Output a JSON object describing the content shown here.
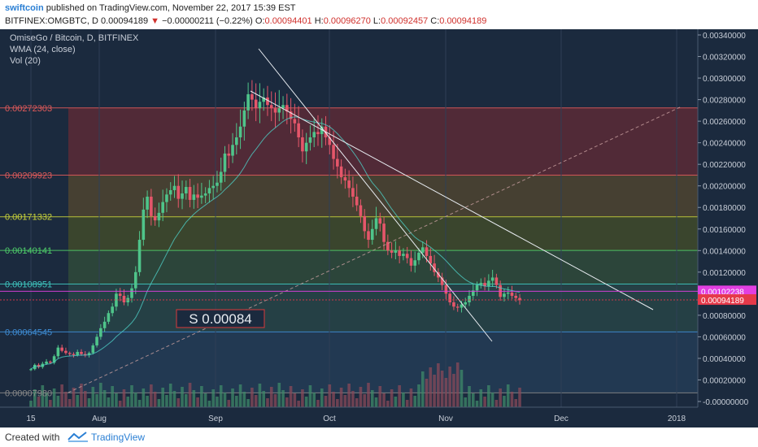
{
  "header": {
    "author": "swiftcoin",
    "published": "published on TradingView.com, November 22, 2017 15:39 EST",
    "ticker": "BITFINEX:OMGBTC, D",
    "last": "0.00094189",
    "change_arrow": "▼",
    "change": "−0.00000211 (−0.22%)",
    "ohlc": {
      "o_label": "O:",
      "o": "0.00094401",
      "h_label": "H:",
      "h": "0.00096270",
      "l_label": "L:",
      "l": "0.00092457",
      "c_label": "C:",
      "c": "0.00094189"
    }
  },
  "legend": {
    "symbol": "OmiseGo / Bitcoin, D, BITFINEX",
    "wma": "WMA (24, close)",
    "vol": "Vol (20)"
  },
  "footer": {
    "created_with": "Created with",
    "brand": "TradingView"
  },
  "chart_data": {
    "type": "candlestick",
    "title": "OmiseGo / Bitcoin, D, BITFINEX",
    "x_axis_labels": [
      "15",
      "Aug",
      "Sep",
      "Oct",
      "Nov",
      "Dec",
      "2018"
    ],
    "y_axis_labels": [
      "0.00340000",
      "0.00320000",
      "0.00300000",
      "0.00280000",
      "0.00260000",
      "0.00240000",
      "0.00220000",
      "0.00200000",
      "0.00180000",
      "0.00160000",
      "0.00140000",
      "0.00120000",
      "0.00100000",
      "0.00080000",
      "0.00060000",
      "0.00040000",
      "0.00020000",
      "-0.00000000"
    ],
    "ylim": [
      -0.0001,
      0.00345
    ],
    "fib_levels": [
      {
        "label": "0.00272303",
        "value": 0.00272303,
        "color": "#e05a5a"
      },
      {
        "label": "0.00209923",
        "value": 0.00209923,
        "color": "#e05a5a"
      },
      {
        "label": "0.00171332",
        "value": 0.00171332,
        "color": "#c8d23a"
      },
      {
        "label": "0.00140141",
        "value": 0.00140141,
        "color": "#4fd06a"
      },
      {
        "label": "0.00108951",
        "value": 0.00108951,
        "color": "#3fc7c0"
      },
      {
        "label": "0.00064545",
        "value": 0.00064545,
        "color": "#3f8fd8"
      },
      {
        "label": "0.00007980",
        "value": 7.98e-05,
        "color": "#888888"
      }
    ],
    "price_labels": [
      {
        "label": "0.00102238",
        "value": 0.00102238,
        "color": "#e23fe2"
      },
      {
        "label": "0.00094189",
        "value": 0.00094189,
        "color": "#e5394a"
      }
    ],
    "annotation": "S 0.00084",
    "closes": [
      0.0003,
      0.00034,
      0.00032,
      0.00035,
      0.00037,
      0.00036,
      0.00042,
      0.0005,
      0.00047,
      0.00045,
      0.00044,
      0.00043,
      0.00046,
      0.00044,
      0.00043,
      0.00045,
      0.00052,
      0.0006,
      0.00068,
      0.00074,
      0.00082,
      0.00088,
      0.001,
      0.00098,
      0.00092,
      0.00096,
      0.00105,
      0.0012,
      0.0015,
      0.00178,
      0.0019,
      0.00172,
      0.00168,
      0.00175,
      0.00185,
      0.00192,
      0.00196,
      0.002,
      0.00188,
      0.00193,
      0.00199,
      0.00187,
      0.00192,
      0.00189,
      0.00191,
      0.00193,
      0.00198,
      0.002,
      0.00203,
      0.00213,
      0.0023,
      0.00228,
      0.00238,
      0.00245,
      0.00255,
      0.0027,
      0.00285,
      0.0028,
      0.00272,
      0.00278,
      0.00282,
      0.00275,
      0.00272,
      0.00268,
      0.00272,
      0.00275,
      0.00269,
      0.00262,
      0.00258,
      0.00245,
      0.00232,
      0.0024,
      0.00245,
      0.0025,
      0.00248,
      0.00255,
      0.00245,
      0.00238,
      0.00225,
      0.00218,
      0.00208,
      0.00205,
      0.00198,
      0.0019,
      0.00182,
      0.00172,
      0.00158,
      0.0015,
      0.0016,
      0.0017,
      0.00165,
      0.00148,
      0.0014,
      0.00138,
      0.0014,
      0.00135,
      0.00137,
      0.00133,
      0.00126,
      0.00131,
      0.00138,
      0.00143,
      0.00135,
      0.00128,
      0.0012,
      0.00115,
      0.00108,
      0.001,
      0.00092,
      0.00088,
      0.00087,
      0.0009,
      0.00092,
      0.00098,
      0.00103,
      0.00108,
      0.0011,
      0.00107,
      0.00112,
      0.00115,
      0.00108,
      0.00097,
      0.001,
      0.00101,
      0.00098,
      0.00096,
      0.00094
    ]
  }
}
